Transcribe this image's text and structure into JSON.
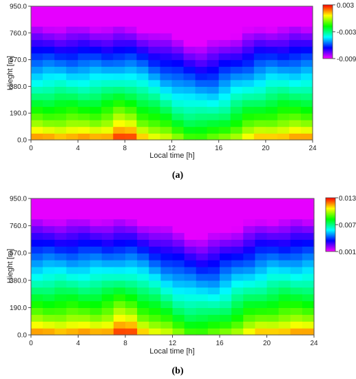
{
  "chart_data": [
    {
      "type": "heatmap",
      "panel_label": "(a)",
      "xlabel": "Local time [h]",
      "ylabel": "Hieght [m]",
      "x_ticks": [
        "0",
        "4",
        "8",
        "12",
        "16",
        "20",
        "24"
      ],
      "y_ticks": [
        "0.0",
        "190.0",
        "380.0",
        "570.0",
        "760.0",
        "950.0"
      ],
      "xlim": [
        0,
        24
      ],
      "ylim": [
        0,
        950
      ],
      "colorbar": {
        "ticks": [
          "0.003",
          "-0.003",
          "-0.009"
        ],
        "min": -0.009,
        "max": 0.003
      },
      "grid": false,
      "value_field": "smooth field; high (red/orange) near surface during night and early morning, low (green) around midday near surface, decreasing with height to minimum (magenta) aloft around 12-20 h",
      "colors": [
        "#ff00ff",
        "#0000ff",
        "#00ffff",
        "#00ff00",
        "#ffff00",
        "#ff0000"
      ]
    },
    {
      "type": "heatmap",
      "panel_label": "(b)",
      "xlabel": "Local time [h]",
      "ylabel": "Hieght [m]",
      "x_ticks": [
        "0",
        "4",
        "8",
        "12",
        "16",
        "20",
        "24"
      ],
      "y_ticks": [
        "0.0",
        "190.0",
        "380.0",
        "570.0",
        "760.0",
        "950.0"
      ],
      "xlim": [
        0,
        24
      ],
      "ylim": [
        0,
        950
      ],
      "colorbar": {
        "ticks": [
          "0.013",
          "0.007",
          "0.001"
        ],
        "min": 0.001,
        "max": 0.013
      },
      "grid": false,
      "value_field": "smooth field; high (red/orange) near surface during night and early morning, low (green) around midday near surface, decreasing with height to minimum (magenta) aloft around 12-20 h",
      "colors": [
        "#ff00ff",
        "#0000ff",
        "#00ffff",
        "#00ff00",
        "#ffff00",
        "#ff0000"
      ]
    }
  ]
}
